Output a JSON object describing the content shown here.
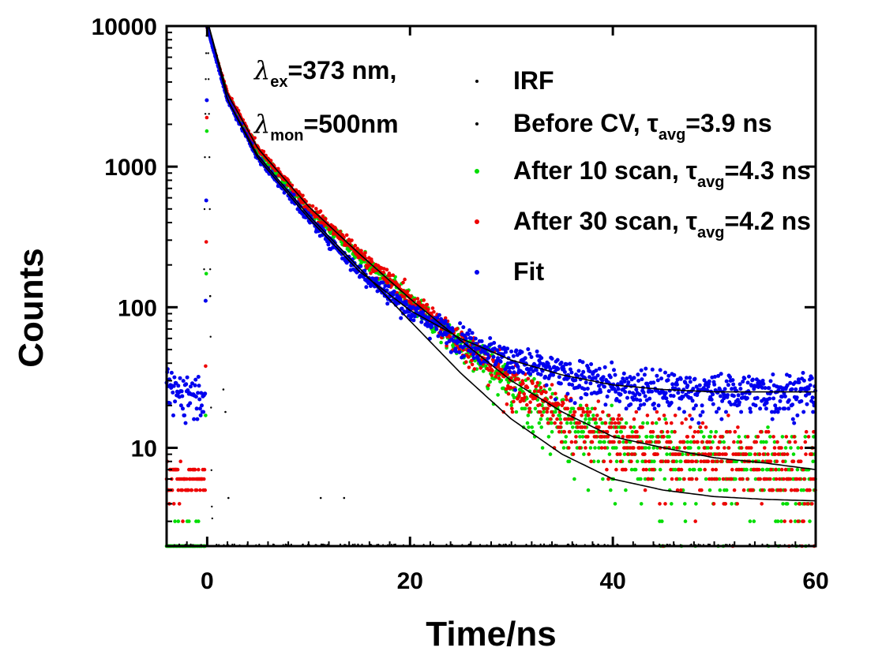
{
  "chart_data": {
    "type": "scatter",
    "xlabel": "Time/ns",
    "ylabel": "Counts",
    "xlim": [
      -4,
      60
    ],
    "ylim": [
      2,
      10000
    ],
    "yscale": "log",
    "x_ticks": [
      0,
      20,
      40,
      60
    ],
    "x_tick_labels": [
      "0",
      "20",
      "40",
      "60"
    ],
    "y_ticks": [
      10,
      100,
      1000,
      10000
    ],
    "y_tick_labels": [
      "10",
      "100",
      "1000",
      "10000"
    ],
    "grid": false,
    "legend_position": "top-right",
    "annotation": {
      "line1": {
        "symbol": "λ",
        "sub": "ex",
        "text": "=373 nm,"
      },
      "line2": {
        "symbol": "λ",
        "sub": "mon",
        "text": "=500nm"
      }
    },
    "series": [
      {
        "name": "IRF",
        "legend_parts": {
          "main": "IRF",
          "sub": "",
          "suffix": ""
        },
        "color": "#000000",
        "peak_time": 0,
        "peak_counts": 10000,
        "baseline_counts": 2
      },
      {
        "name": "Before CV, τavg=3.9 ns",
        "legend_parts": {
          "main": "Before CV, τ",
          "sub": "avg",
          "suffix": "=3.9 ns"
        },
        "color": "#000000",
        "tau_avg_ns": 3.9,
        "decay_points": [
          [
            0,
            9800
          ],
          [
            2,
            3000
          ],
          [
            5,
            1200
          ],
          [
            10,
            450
          ],
          [
            15,
            190
          ],
          [
            20,
            80
          ],
          [
            25,
            34
          ],
          [
            30,
            16
          ],
          [
            35,
            9
          ],
          [
            40,
            6
          ],
          [
            45,
            5
          ],
          [
            50,
            4.5
          ],
          [
            55,
            4.3
          ],
          [
            60,
            4.2
          ]
        ]
      },
      {
        "name": "After 10 scan, τavg=4.3 ns",
        "legend_parts": {
          "main": "After 10 scan, τ",
          "sub": "avg",
          "suffix": "=4.3 ns"
        },
        "color": "#00dd00",
        "tau_avg_ns": 4.3,
        "decay_points": [
          [
            0,
            9800
          ],
          [
            2,
            3200
          ],
          [
            5,
            1300
          ],
          [
            10,
            500
          ],
          [
            15,
            230
          ],
          [
            20,
            110
          ],
          [
            25,
            55
          ],
          [
            30,
            28
          ],
          [
            35,
            16
          ],
          [
            40,
            11
          ],
          [
            45,
            9
          ],
          [
            50,
            8
          ],
          [
            55,
            7.5
          ],
          [
            60,
            7
          ]
        ]
      },
      {
        "name": "After 30 scan, τavg=4.2 ns",
        "legend_parts": {
          "main": "After 30 scan, τ",
          "sub": "avg",
          "suffix": "=4.2 ns"
        },
        "color": "#ee0000",
        "tau_avg_ns": 4.2,
        "decay_points": [
          [
            0,
            9800
          ],
          [
            2,
            3300
          ],
          [
            5,
            1350
          ],
          [
            10,
            520
          ],
          [
            15,
            240
          ],
          [
            20,
            115
          ],
          [
            25,
            58
          ],
          [
            30,
            30
          ],
          [
            35,
            18
          ],
          [
            40,
            12
          ],
          [
            45,
            10
          ],
          [
            50,
            8.5
          ],
          [
            55,
            7.8
          ],
          [
            60,
            7
          ]
        ]
      },
      {
        "name": "Fit",
        "legend_parts": {
          "main": "Fit",
          "sub": "",
          "suffix": ""
        },
        "color": "#0000ee",
        "baseline_counts": 25,
        "decay_points": [
          [
            0,
            9800
          ],
          [
            2,
            3000
          ],
          [
            5,
            1150
          ],
          [
            10,
            430
          ],
          [
            15,
            180
          ],
          [
            20,
            95
          ],
          [
            25,
            60
          ],
          [
            30,
            42
          ],
          [
            35,
            33
          ],
          [
            40,
            28
          ],
          [
            45,
            26
          ],
          [
            50,
            25
          ],
          [
            55,
            25
          ],
          [
            60,
            25
          ]
        ]
      }
    ],
    "fit_curves": [
      {
        "label_series": "Before CV, τavg=3.9 ns",
        "color": "#000000",
        "points": [
          [
            0.2,
            9800
          ],
          [
            2,
            3000
          ],
          [
            5,
            1200
          ],
          [
            10,
            450
          ],
          [
            15,
            190
          ],
          [
            20,
            80
          ],
          [
            25,
            34
          ],
          [
            30,
            16
          ],
          [
            35,
            9
          ],
          [
            40,
            6
          ],
          [
            45,
            5
          ],
          [
            50,
            4.5
          ],
          [
            55,
            4.3
          ],
          [
            60,
            4.2
          ]
        ]
      },
      {
        "label_series": "After 30 scan, τavg=4.2 ns",
        "color": "#000000",
        "points": [
          [
            0.2,
            9800
          ],
          [
            2,
            3300
          ],
          [
            5,
            1350
          ],
          [
            10,
            520
          ],
          [
            15,
            240
          ],
          [
            20,
            115
          ],
          [
            25,
            58
          ],
          [
            30,
            30
          ],
          [
            35,
            18
          ],
          [
            40,
            12
          ],
          [
            45,
            10
          ],
          [
            50,
            8.5
          ],
          [
            55,
            7.8
          ],
          [
            60,
            7
          ]
        ]
      },
      {
        "label_series": "Fit",
        "color": "#000000",
        "points": [
          [
            0.2,
            9800
          ],
          [
            2,
            3000
          ],
          [
            5,
            1150
          ],
          [
            10,
            430
          ],
          [
            15,
            180
          ],
          [
            20,
            95
          ],
          [
            25,
            60
          ],
          [
            30,
            42
          ],
          [
            35,
            33
          ],
          [
            40,
            28
          ],
          [
            45,
            26
          ],
          [
            50,
            25
          ],
          [
            55,
            25
          ],
          [
            60,
            25
          ]
        ]
      }
    ]
  }
}
